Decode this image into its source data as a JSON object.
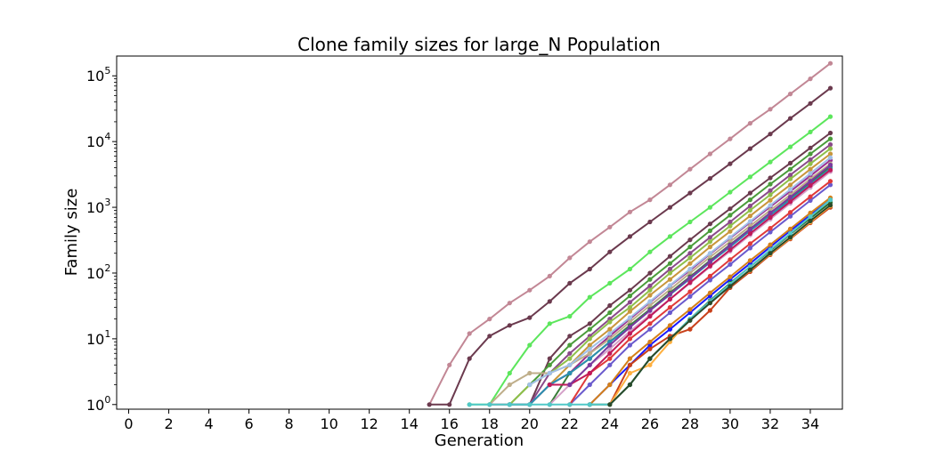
{
  "chart_data": {
    "type": "line",
    "title": "Clone family sizes for large_N Population",
    "xlabel": "Generation",
    "ylabel": "Family size",
    "yscale": "log",
    "xlim": [
      -0.6,
      35.6
    ],
    "ylim": [
      0.85,
      200000
    ],
    "x_ticks": [
      0,
      2,
      4,
      6,
      8,
      10,
      12,
      14,
      16,
      18,
      20,
      22,
      24,
      26,
      28,
      30,
      32,
      34
    ],
    "y_tick_exponents": [
      0,
      1,
      2,
      3,
      4,
      5
    ],
    "y_tick_base": "10",
    "grid": false,
    "legend": "none",
    "series": [
      {
        "color": "#c28795",
        "x": [
          15,
          16,
          17,
          18,
          19,
          20,
          21,
          22,
          23,
          24,
          25,
          26,
          27,
          28,
          29,
          30,
          31,
          32,
          33,
          34,
          35
        ],
        "values": [
          1,
          4,
          12,
          20,
          35,
          55,
          90,
          170,
          300,
          500,
          850,
          1300,
          2200,
          3800,
          6500,
          11000,
          19000,
          31000,
          53000,
          90000,
          155000
        ]
      },
      {
        "color": "#6b3a4e",
        "x": [
          15,
          16,
          17,
          18,
          19,
          20,
          21,
          22,
          23,
          24,
          25,
          26,
          27,
          28,
          29,
          30,
          31,
          32,
          33,
          34,
          35
        ],
        "values": [
          1,
          1,
          5,
          11,
          16,
          21,
          37,
          70,
          115,
          210,
          360,
          600,
          1000,
          1650,
          2750,
          4600,
          7800,
          13000,
          22500,
          38000,
          65000
        ]
      },
      {
        "color": "#5ce65c",
        "x": [
          17,
          18,
          19,
          20,
          21,
          22,
          23,
          24,
          25,
          26,
          27,
          28,
          29,
          30,
          31,
          32,
          33,
          34,
          35
        ],
        "values": [
          1,
          1,
          3,
          8,
          17,
          22,
          43,
          70,
          115,
          210,
          360,
          600,
          1000,
          1700,
          2900,
          4900,
          8300,
          14000,
          24000
        ]
      },
      {
        "color": "#6b3a4e",
        "x": [
          18,
          19,
          20,
          21,
          22,
          23,
          24,
          25,
          26,
          27,
          28,
          29,
          30,
          31,
          32,
          33,
          34,
          35
        ],
        "values": [
          1,
          1,
          1,
          5,
          11,
          17,
          32,
          55,
          100,
          180,
          320,
          560,
          950,
          1650,
          2800,
          4700,
          8000,
          13500
        ]
      },
      {
        "color": "#4a9c3a",
        "x": [
          19,
          20,
          21,
          22,
          23,
          24,
          25,
          26,
          27,
          28,
          29,
          30,
          31,
          32,
          33,
          34,
          35
        ],
        "values": [
          1,
          2,
          4,
          8,
          14,
          25,
          45,
          80,
          140,
          250,
          440,
          760,
          1300,
          2250,
          3800,
          6500,
          11000
        ]
      },
      {
        "color": "#8a4a8a",
        "x": [
          19,
          20,
          21,
          22,
          23,
          24,
          25,
          26,
          27,
          28,
          29,
          30,
          31,
          32,
          33,
          34,
          35
        ],
        "values": [
          1,
          1,
          3,
          6,
          11,
          20,
          36,
          64,
          115,
          200,
          350,
          600,
          1050,
          1800,
          3100,
          5300,
          9000
        ]
      },
      {
        "color": "#8fbf4a",
        "x": [
          19,
          20,
          21,
          22,
          23,
          24,
          25,
          26,
          27,
          28,
          29,
          30,
          31,
          32,
          33,
          34,
          35
        ],
        "values": [
          1,
          2,
          3,
          5,
          10,
          18,
          30,
          55,
          100,
          170,
          300,
          520,
          900,
          1550,
          2700,
          4600,
          7800
        ]
      },
      {
        "color": "#c8963c",
        "x": [
          20,
          21,
          22,
          23,
          24,
          25,
          26,
          27,
          28,
          29,
          30,
          31,
          32,
          33,
          34,
          35
        ],
        "values": [
          1,
          2,
          4,
          8,
          14,
          26,
          46,
          80,
          140,
          250,
          430,
          740,
          1280,
          2200,
          3800,
          6500
        ]
      },
      {
        "color": "#9b2d8f",
        "x": [
          20,
          21,
          22,
          23,
          24,
          25,
          26,
          27,
          28,
          29,
          30,
          31,
          32,
          33,
          34,
          35
        ],
        "values": [
          1,
          2,
          3,
          6,
          11,
          20,
          36,
          64,
          110,
          195,
          340,
          590,
          1020,
          1750,
          3000,
          5200
        ]
      },
      {
        "color": "#bfae8a",
        "x": [
          18,
          19,
          20,
          21,
          22,
          23,
          24,
          25,
          26,
          27,
          28,
          29,
          30,
          31,
          32,
          33,
          34,
          35
        ],
        "values": [
          1,
          2,
          3,
          3,
          4,
          6,
          10,
          18,
          32,
          56,
          100,
          175,
          300,
          520,
          900,
          1550,
          2700,
          4600
        ]
      },
      {
        "color": "#3a7d3a",
        "x": [
          21,
          22,
          23,
          24,
          25,
          26,
          27,
          28,
          29,
          30,
          31,
          32,
          33,
          34,
          35
        ],
        "values": [
          1,
          3,
          5,
          9,
          16,
          28,
          50,
          88,
          155,
          270,
          470,
          820,
          1400,
          2400,
          4100
        ]
      },
      {
        "color": "#d4a0c8",
        "x": [
          21,
          22,
          23,
          24,
          25,
          26,
          27,
          28,
          29,
          30,
          31,
          32,
          33,
          34,
          35
        ],
        "values": [
          1,
          2,
          4,
          7,
          13,
          23,
          40,
          70,
          125,
          215,
          380,
          660,
          1150,
          2000,
          3500
        ]
      },
      {
        "color": "#2a8fb0",
        "x": [
          19,
          20,
          21,
          22,
          23,
          24,
          25,
          26,
          27,
          28,
          29,
          30,
          31,
          32,
          33,
          34,
          35
        ],
        "values": [
          1,
          1,
          2,
          3,
          5,
          9,
          15,
          27,
          47,
          82,
          145,
          250,
          440,
          760,
          1300,
          2250,
          3900
        ]
      },
      {
        "color": "#6a5acd",
        "x": [
          22,
          23,
          24,
          25,
          26,
          27,
          28,
          29,
          30,
          31,
          32,
          33,
          34,
          35
        ],
        "values": [
          1,
          2,
          4,
          8,
          14,
          25,
          44,
          78,
          135,
          240,
          420,
          730,
          1270,
          2200
        ]
      },
      {
        "color": "#e03a3a",
        "x": [
          22,
          23,
          24,
          25,
          26,
          27,
          28,
          29,
          30,
          31,
          32,
          33,
          34,
          35
        ],
        "values": [
          1,
          3,
          5,
          10,
          17,
          30,
          52,
          90,
          160,
          280,
          480,
          840,
          1450,
          2500
        ]
      },
      {
        "color": "#1a1aff",
        "x": [
          23,
          24,
          25,
          26,
          27,
          28,
          29,
          30,
          31,
          32,
          33,
          34,
          35
        ],
        "values": [
          1,
          2,
          4,
          8,
          14,
          25,
          45,
          80,
          140,
          250,
          440,
          760,
          1300
        ]
      },
      {
        "color": "#d4801a",
        "x": [
          23,
          24,
          25,
          26,
          27,
          28,
          29,
          30,
          31,
          32,
          33,
          34,
          35
        ],
        "values": [
          1,
          2,
          5,
          9,
          16,
          28,
          50,
          88,
          155,
          270,
          470,
          820,
          1400
        ]
      },
      {
        "color": "#c8401a",
        "x": [
          24,
          25,
          26,
          27,
          28,
          29,
          30,
          31,
          32,
          33,
          34,
          35
        ],
        "values": [
          1,
          4,
          7,
          11,
          14,
          27,
          60,
          105,
          190,
          330,
          580,
          1000
        ]
      },
      {
        "color": "#2a6a2a",
        "x": [
          23,
          24,
          25,
          26,
          27,
          28,
          29,
          30,
          31,
          32,
          33,
          34,
          35
        ],
        "values": [
          1,
          1,
          2,
          5,
          10,
          20,
          38,
          70,
          125,
          220,
          390,
          680,
          1180
        ]
      },
      {
        "color": "#ffb040",
        "x": [
          24,
          25,
          26,
          27,
          28,
          29,
          30,
          31,
          32,
          33,
          34,
          35
        ],
        "values": [
          1,
          3,
          4,
          9,
          20,
          36,
          63,
          110,
          195,
          340,
          600,
          1050
        ]
      },
      {
        "color": "#50c8c8",
        "x": [
          17,
          18,
          19,
          20,
          21,
          22,
          23,
          24,
          25,
          26,
          27,
          28,
          29,
          30,
          31,
          32,
          33,
          34,
          35
        ],
        "values": [
          1,
          1,
          1,
          1,
          1,
          1,
          1,
          1,
          2,
          5,
          10,
          20,
          37,
          68,
          125,
          225,
          400,
          720,
          1300
        ]
      },
      {
        "color": "#c01a5a",
        "x": [
          21,
          22,
          23,
          24,
          25,
          26,
          27,
          28,
          29,
          30,
          31,
          32,
          33,
          34,
          35
        ],
        "values": [
          2,
          2,
          3,
          6,
          12,
          22,
          40,
          72,
          128,
          225,
          400,
          700,
          1220,
          2150,
          3700
        ]
      },
      {
        "color": "#7a3aa0",
        "x": [
          22,
          23,
          24,
          25,
          26,
          27,
          28,
          29,
          30,
          31,
          32,
          33,
          34,
          35
        ],
        "values": [
          2,
          4,
          8,
          15,
          27,
          48,
          85,
          150,
          265,
          465,
          820,
          1430,
          2500,
          4400
        ]
      },
      {
        "color": "#2a4a2a",
        "x": [
          24,
          25,
          26,
          27,
          28,
          29,
          30,
          31,
          32,
          33,
          34,
          35
        ],
        "values": [
          1,
          2,
          5,
          10,
          19,
          35,
          63,
          112,
          200,
          350,
          620,
          1080
        ]
      },
      {
        "color": "#a0c0e8",
        "x": [
          20,
          21,
          22,
          23,
          24,
          25,
          26,
          27,
          28,
          29,
          30,
          31,
          32,
          33,
          34,
          35
        ],
        "values": [
          2,
          3,
          4,
          7,
          12,
          21,
          37,
          65,
          115,
          200,
          350,
          610,
          1070,
          1870,
          3270,
          5700
        ]
      }
    ]
  }
}
